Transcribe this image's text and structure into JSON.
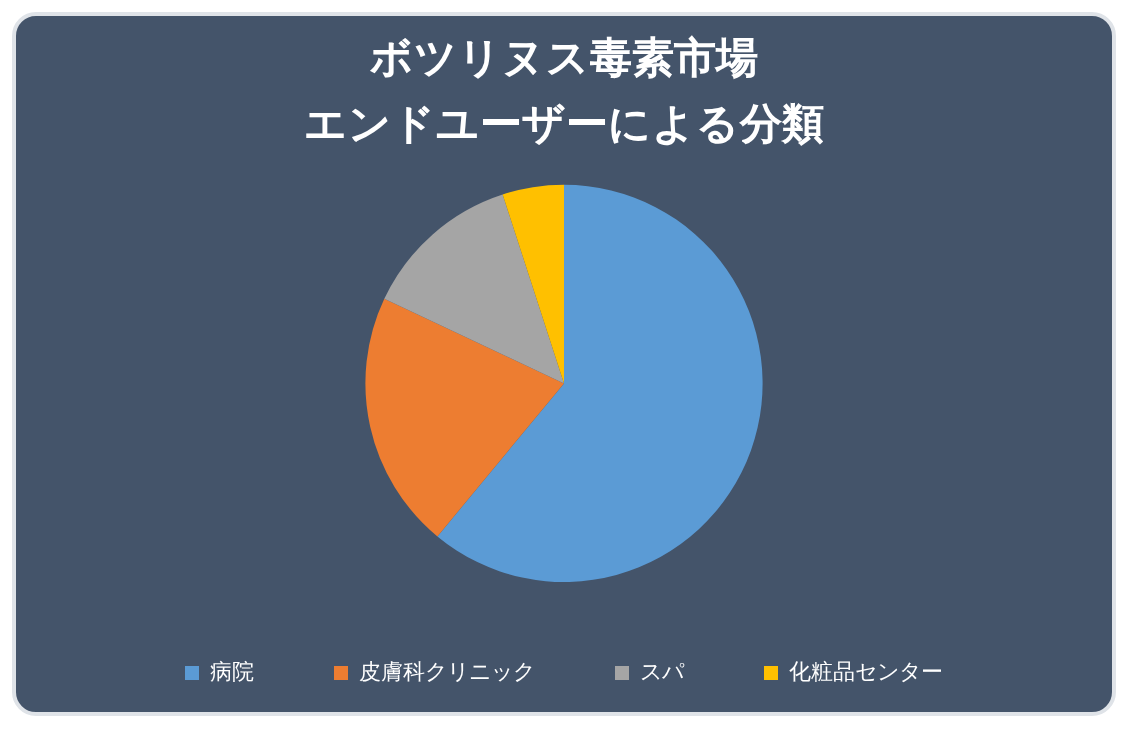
{
  "chart_data": {
    "type": "pie",
    "title": "ボツリヌス毒素市場",
    "subtitle": "エンドユーザーによる分類",
    "categories": [
      "病院",
      "皮膚科クリニック",
      "スパ",
      "化粧品センター"
    ],
    "values": [
      61,
      21,
      13,
      5
    ],
    "colors": [
      "#5b9bd5",
      "#ed7d31",
      "#a5a5a5",
      "#ffc000"
    ],
    "legend": "bottom"
  }
}
